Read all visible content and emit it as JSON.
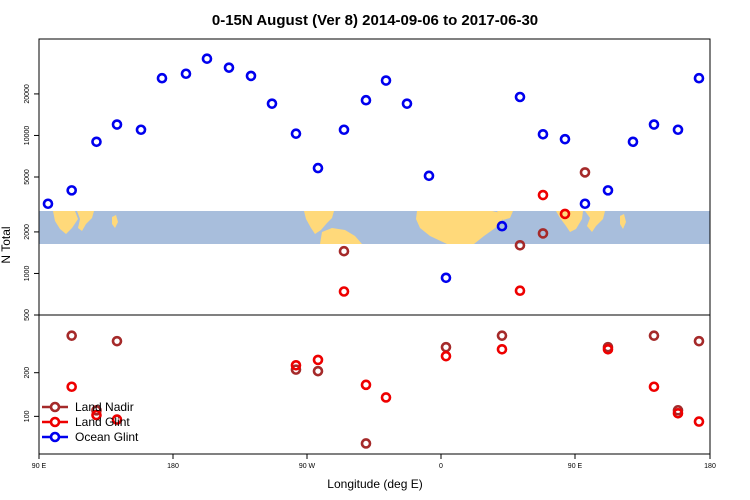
{
  "chart_data": {
    "type": "scatter",
    "title": "0-15N August (Ver 8)   2014-09-06 to 2017-06-30",
    "xlabel": "Longitude (deg E)",
    "ylabel": "N Total",
    "x_ticks": [
      {
        "label": "90 E"
      },
      {
        "label": "180"
      },
      {
        "label": "90 W"
      },
      {
        "label": "0"
      },
      {
        "label": "90 E"
      },
      {
        "label": "180"
      }
    ],
    "y_scale": "log",
    "ylim": [
      55,
      50000
    ],
    "panel_break": 500,
    "y_ticks": [
      {
        "value": 100,
        "label": "100"
      },
      {
        "value": 200,
        "label": "200"
      },
      {
        "value": 500,
        "label": "500"
      },
      {
        "value": 1000,
        "label": "1000"
      },
      {
        "value": 2000,
        "label": "2000"
      },
      {
        "value": 5000,
        "label": "5000"
      },
      {
        "value": 10000,
        "label": "10000"
      },
      {
        "value": 20000,
        "label": "20000"
      }
    ],
    "map_strip": {
      "description": "world map band 0-15N",
      "ocean_color": "#a8bedc",
      "land_color": "#ffd97a"
    },
    "series": [
      {
        "name": "Land Nadir",
        "color": "#a52a2a",
        "points": [
          {
            "x": 1,
            "y": 360
          },
          {
            "x": 2,
            "y": 110
          },
          {
            "x": 3,
            "y": 330
          },
          {
            "x": 11,
            "y": 210
          },
          {
            "x": 12,
            "y": 205
          },
          {
            "x": 13,
            "y": 1450
          },
          {
            "x": 14,
            "y": 65
          },
          {
            "x": 18,
            "y": 300
          },
          {
            "x": 19,
            "y": 360
          },
          {
            "x": 20,
            "y": 1600
          },
          {
            "x": 21,
            "y": 1950
          },
          {
            "x": 23,
            "y": 5400
          },
          {
            "x": 24,
            "y": 300
          },
          {
            "x": 26,
            "y": 360
          },
          {
            "x": 27,
            "y": 110
          },
          {
            "x": 28,
            "y": 330
          }
        ]
      },
      {
        "name": "Land Glint",
        "color": "#ee0000",
        "points": [
          {
            "x": 1,
            "y": 160
          },
          {
            "x": 2,
            "y": 102
          },
          {
            "x": 3,
            "y": 95
          },
          {
            "x": 11,
            "y": 225
          },
          {
            "x": 12,
            "y": 245
          },
          {
            "x": 13,
            "y": 740
          },
          {
            "x": 14,
            "y": 165
          },
          {
            "x": 15,
            "y": 135
          },
          {
            "x": 18,
            "y": 260
          },
          {
            "x": 19,
            "y": 290
          },
          {
            "x": 20,
            "y": 750
          },
          {
            "x": 21,
            "y": 3700
          },
          {
            "x": 22,
            "y": 2700
          },
          {
            "x": 24,
            "y": 290
          },
          {
            "x": 26,
            "y": 160
          },
          {
            "x": 27,
            "y": 105
          },
          {
            "x": 28,
            "y": 92
          }
        ]
      },
      {
        "name": "Ocean Glint",
        "color": "#0000ee",
        "points": [
          {
            "x": 0,
            "y": 3200
          },
          {
            "x": 1,
            "y": 4000
          },
          {
            "x": 2,
            "y": 9000
          },
          {
            "x": 3,
            "y": 12000
          },
          {
            "x": 4,
            "y": 11000
          },
          {
            "x": 5,
            "y": 26000
          },
          {
            "x": 6,
            "y": 28000
          },
          {
            "x": 7,
            "y": 36000
          },
          {
            "x": 8,
            "y": 31000
          },
          {
            "x": 9,
            "y": 27000
          },
          {
            "x": 10,
            "y": 17000
          },
          {
            "x": 11,
            "y": 10300
          },
          {
            "x": 12,
            "y": 5800
          },
          {
            "x": 13,
            "y": 11000
          },
          {
            "x": 14,
            "y": 18000
          },
          {
            "x": 15,
            "y": 25000
          },
          {
            "x": 16,
            "y": 17000
          },
          {
            "x": 17,
            "y": 5100
          },
          {
            "x": 18,
            "y": 930
          },
          {
            "x": 19,
            "y": 2200
          },
          {
            "x": 20,
            "y": 19000
          },
          {
            "x": 21,
            "y": 10200
          },
          {
            "x": 22,
            "y": 9400
          },
          {
            "x": 23,
            "y": 3200
          },
          {
            "x": 24,
            "y": 4000
          },
          {
            "x": 25,
            "y": 9000
          },
          {
            "x": 26,
            "y": 12000
          },
          {
            "x": 27,
            "y": 11000
          },
          {
            "x": 28,
            "y": 26000
          }
        ]
      }
    ],
    "x_positions": [
      48,
      71.7,
      96.5,
      117,
      141,
      162,
      186,
      207,
      229,
      251,
      272,
      296,
      318,
      344,
      366,
      386,
      407,
      429,
      446,
      502,
      520,
      543,
      565,
      585,
      608,
      633,
      654,
      678,
      699
    ],
    "legend": {
      "position": "bottom-left"
    }
  }
}
